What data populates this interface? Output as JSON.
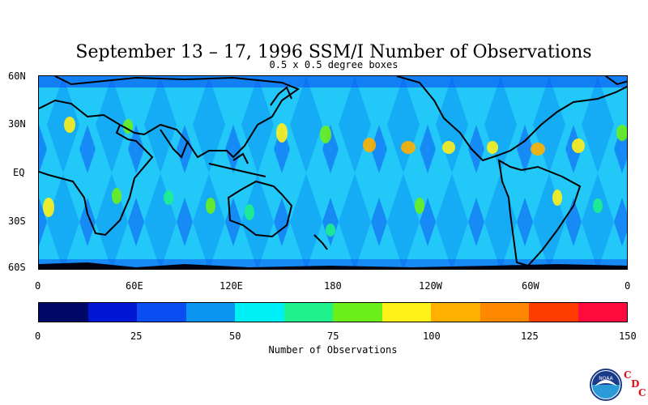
{
  "title": "September 13 – 17, 1996 SSM/I Number of Observations",
  "subtitle": "0.5 x 0.5 degree boxes",
  "map": {
    "lat_labels": [
      "60N",
      "30N",
      "EQ",
      "30S",
      "60S"
    ],
    "lon_labels": [
      "0",
      "60E",
      "120E",
      "180",
      "120W",
      "60W",
      "0"
    ]
  },
  "colorbar": {
    "title": "Number of Observations",
    "tick_labels": [
      "0",
      "25",
      "50",
      "75",
      "100",
      "125",
      "150"
    ],
    "colors": [
      "#000a66",
      "#0018d6",
      "#0a4ef2",
      "#0a94f2",
      "#00f0f8",
      "#1ef08c",
      "#6cf01a",
      "#fff01a",
      "#ffb000",
      "#ff8800",
      "#ff3c00",
      "#ff0a3c"
    ]
  },
  "logo": {
    "letters": [
      "C",
      "D",
      "C"
    ],
    "badge_text": "NOAA"
  }
}
